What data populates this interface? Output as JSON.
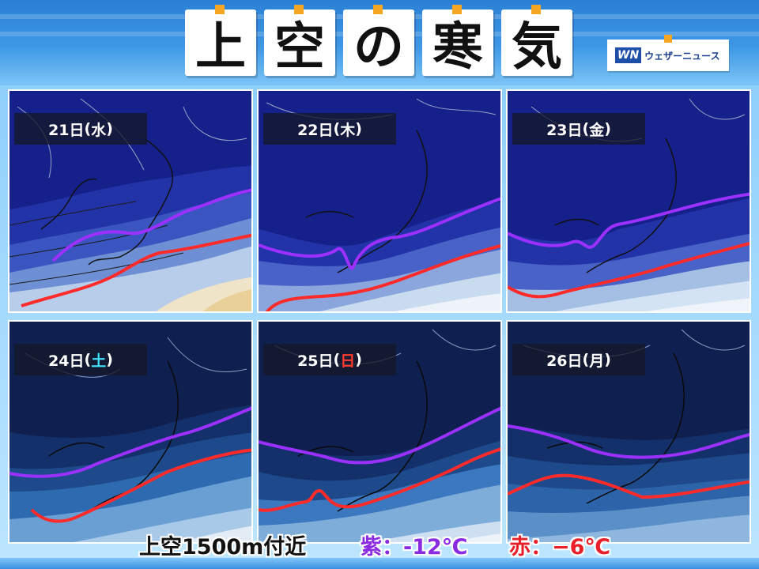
{
  "title": {
    "chars": [
      "上",
      "空",
      "の",
      "寒",
      "気"
    ]
  },
  "logo": {
    "mark": "WN",
    "text": "ウェザーニュース"
  },
  "panels": [
    {
      "day": "21日",
      "dow": "水",
      "dow_type": "weekday"
    },
    {
      "day": "22日",
      "dow": "木",
      "dow_type": "weekday"
    },
    {
      "day": "23日",
      "dow": "金",
      "dow_type": "weekday"
    },
    {
      "day": "24日",
      "dow": "土",
      "dow_type": "saturday"
    },
    {
      "day": "25日",
      "dow": "日",
      "dow_type": "sunday"
    },
    {
      "day": "26日",
      "dow": "月",
      "dow_type": "weekday"
    }
  ],
  "legend": {
    "level": "上空1500m付近",
    "purple": "紫：-12℃",
    "red": "赤：−6℃"
  },
  "colors": {
    "purple_line": "#9b30ff",
    "red_line": "#ff2a2a",
    "saturday": "#40e0ff",
    "sunday": "#ff3b30",
    "title_tab": "#f5a623"
  }
}
